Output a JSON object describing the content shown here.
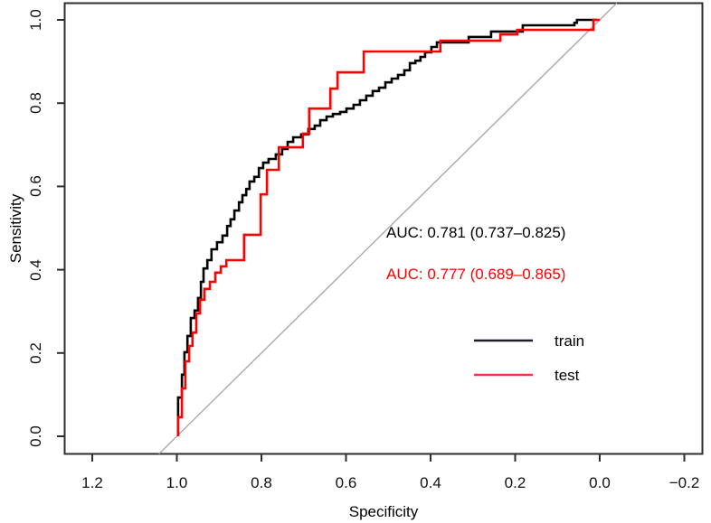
{
  "figure": {
    "background": "#ffffff",
    "axis_color": "#2e2e2e",
    "tick_label_color": "#111111"
  },
  "chart_data": {
    "type": "line",
    "subtype": "roc-curves",
    "title": "",
    "xlabel": "Specificity",
    "ylabel": "Sensitivity",
    "xlim": [
      1.2,
      -0.2
    ],
    "ylim": [
      0.0,
      1.0
    ],
    "x_ticks": [
      1.2,
      1.0,
      0.8,
      0.6,
      0.4,
      0.2,
      0.0,
      -0.2
    ],
    "x_tick_labels": [
      "1.2",
      "1.0",
      "0.8",
      "0.6",
      "0.4",
      "0.2",
      "0.0",
      "−0.2"
    ],
    "y_ticks": [
      0.0,
      0.2,
      0.4,
      0.6,
      0.8,
      1.0
    ],
    "y_tick_labels": [
      "0.0",
      "0.2",
      "0.4",
      "0.6",
      "0.8",
      "1.0"
    ],
    "grid": false,
    "diagonal_reference_line": {
      "from": [
        1.0,
        0.0
      ],
      "to": [
        0.0,
        1.0
      ],
      "color": "#a9a9a9"
    },
    "auc": {
      "train": {
        "value": 0.781,
        "ci_low": 0.737,
        "ci_high": 0.825
      },
      "test": {
        "value": 0.777,
        "ci_low": 0.689,
        "ci_high": 0.865
      }
    },
    "annotations": [
      {
        "text": "AUC: 0.781 (0.737–0.825)",
        "color": "#000000"
      },
      {
        "text": "AUC: 0.777 (0.689–0.865)",
        "color": "#fe0000"
      }
    ],
    "legend": {
      "position": "bottom-right",
      "entries": [
        {
          "label": "train",
          "color": "#1b1e27"
        },
        {
          "label": "test",
          "color": "#ff2e50"
        }
      ]
    },
    "series": [
      {
        "name": "train",
        "color": "#000000",
        "points": [
          [
            0.997,
            0.0
          ],
          [
            0.997,
            0.093
          ],
          [
            0.988,
            0.093
          ],
          [
            0.988,
            0.148
          ],
          [
            0.982,
            0.148
          ],
          [
            0.982,
            0.202
          ],
          [
            0.975,
            0.202
          ],
          [
            0.975,
            0.241
          ],
          [
            0.967,
            0.241
          ],
          [
            0.967,
            0.284
          ],
          [
            0.958,
            0.284
          ],
          [
            0.958,
            0.302
          ],
          [
            0.95,
            0.302
          ],
          [
            0.95,
            0.332
          ],
          [
            0.943,
            0.332
          ],
          [
            0.943,
            0.371
          ],
          [
            0.937,
            0.371
          ],
          [
            0.937,
            0.403
          ],
          [
            0.928,
            0.403
          ],
          [
            0.928,
            0.423
          ],
          [
            0.918,
            0.423
          ],
          [
            0.918,
            0.44
          ],
          [
            0.905,
            0.449
          ],
          [
            0.892,
            0.466
          ],
          [
            0.881,
            0.482
          ],
          [
            0.873,
            0.505
          ],
          [
            0.864,
            0.521
          ],
          [
            0.853,
            0.542
          ],
          [
            0.845,
            0.562
          ],
          [
            0.836,
            0.579
          ],
          [
            0.828,
            0.594
          ],
          [
            0.817,
            0.612
          ],
          [
            0.806,
            0.623
          ],
          [
            0.796,
            0.644
          ],
          [
            0.783,
            0.657
          ],
          [
            0.766,
            0.666
          ],
          [
            0.751,
            0.677
          ],
          [
            0.738,
            0.69
          ],
          [
            0.725,
            0.707
          ],
          [
            0.706,
            0.718
          ],
          [
            0.689,
            0.725
          ],
          [
            0.674,
            0.738
          ],
          [
            0.661,
            0.746
          ],
          [
            0.646,
            0.759
          ],
          [
            0.631,
            0.768
          ],
          [
            0.614,
            0.774
          ],
          [
            0.599,
            0.779
          ],
          [
            0.582,
            0.787
          ],
          [
            0.567,
            0.796
          ],
          [
            0.552,
            0.807
          ],
          [
            0.537,
            0.818
          ],
          [
            0.522,
            0.829
          ],
          [
            0.507,
            0.837
          ],
          [
            0.492,
            0.85
          ],
          [
            0.477,
            0.859
          ],
          [
            0.462,
            0.868
          ],
          [
            0.449,
            0.879
          ],
          [
            0.436,
            0.896
          ],
          [
            0.424,
            0.902
          ],
          [
            0.413,
            0.911
          ],
          [
            0.398,
            0.922
          ],
          [
            0.385,
            0.935
          ],
          [
            0.37,
            0.946
          ],
          [
            0.31,
            0.946
          ],
          [
            0.31,
            0.959
          ],
          [
            0.257,
            0.959
          ],
          [
            0.257,
            0.972
          ],
          [
            0.182,
            0.972
          ],
          [
            0.182,
            0.987
          ],
          [
            0.06,
            0.987
          ],
          [
            0.054,
            0.993
          ],
          [
            0.039,
            1.0
          ],
          [
            0.007,
            1.0
          ]
        ]
      },
      {
        "name": "test",
        "color": "#fe0000",
        "points": [
          [
            0.997,
            0.0
          ],
          [
            0.997,
            0.046
          ],
          [
            0.988,
            0.046
          ],
          [
            0.988,
            0.115
          ],
          [
            0.98,
            0.115
          ],
          [
            0.98,
            0.18
          ],
          [
            0.971,
            0.18
          ],
          [
            0.971,
            0.217
          ],
          [
            0.963,
            0.217
          ],
          [
            0.963,
            0.249
          ],
          [
            0.954,
            0.249
          ],
          [
            0.954,
            0.295
          ],
          [
            0.945,
            0.295
          ],
          [
            0.945,
            0.328
          ],
          [
            0.935,
            0.328
          ],
          [
            0.935,
            0.354
          ],
          [
            0.922,
            0.354
          ],
          [
            0.922,
            0.371
          ],
          [
            0.909,
            0.371
          ],
          [
            0.909,
            0.393
          ],
          [
            0.896,
            0.393
          ],
          [
            0.896,
            0.408
          ],
          [
            0.883,
            0.408
          ],
          [
            0.883,
            0.423
          ],
          [
            0.841,
            0.423
          ],
          [
            0.841,
            0.484
          ],
          [
            0.802,
            0.484
          ],
          [
            0.802,
            0.581
          ],
          [
            0.787,
            0.581
          ],
          [
            0.787,
            0.64
          ],
          [
            0.759,
            0.64
          ],
          [
            0.759,
            0.694
          ],
          [
            0.702,
            0.694
          ],
          [
            0.702,
            0.727
          ],
          [
            0.687,
            0.727
          ],
          [
            0.687,
            0.787
          ],
          [
            0.637,
            0.787
          ],
          [
            0.637,
            0.835
          ],
          [
            0.62,
            0.835
          ],
          [
            0.62,
            0.874
          ],
          [
            0.558,
            0.874
          ],
          [
            0.558,
            0.924
          ],
          [
            0.377,
            0.924
          ],
          [
            0.377,
            0.95
          ],
          [
            0.235,
            0.95
          ],
          [
            0.235,
            0.965
          ],
          [
            0.195,
            0.965
          ],
          [
            0.195,
            0.976
          ],
          [
            0.015,
            0.976
          ],
          [
            0.015,
            1.0
          ],
          [
            0.0,
            1.0
          ]
        ]
      }
    ]
  }
}
